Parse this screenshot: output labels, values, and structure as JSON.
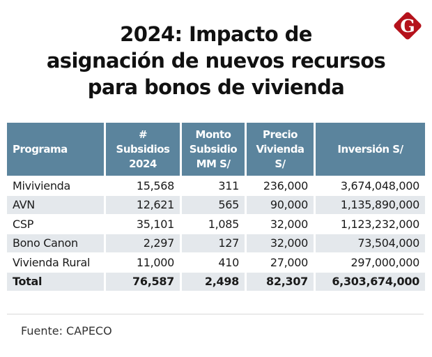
{
  "title_lines": [
    "2024: Impacto de",
    "asignación de nuevos recursos",
    "para bonos de vivienda"
  ],
  "logo": {
    "letter": "G",
    "color": "#b5121b"
  },
  "table": {
    "headers": [
      [
        "Programa"
      ],
      [
        "#",
        "Subsidios",
        "2024"
      ],
      [
        "Monto",
        "Subsidio",
        "MM S/"
      ],
      [
        "Precio",
        "Vivienda",
        "S/"
      ],
      [
        "Inversión S/"
      ]
    ],
    "rows": [
      [
        "Mivivienda",
        "15,568",
        "311",
        "236,000",
        "3,674,048,000"
      ],
      [
        "AVN",
        "12,621",
        "565",
        "90,000",
        "1,135,890,000"
      ],
      [
        "CSP",
        "35,101",
        "1,085",
        "32,000",
        "1,123,232,000"
      ],
      [
        "Bono Canon",
        "2,297",
        "127",
        "32,000",
        "73,504,000"
      ],
      [
        "Vivienda Rural",
        "11,000",
        "410",
        "27,000",
        "297,000,000"
      ]
    ],
    "total": [
      "Total",
      "76,587",
      "2,498",
      "82,307",
      "6,303,674,000"
    ]
  },
  "source": "Fuente: CAPECO",
  "colors": {
    "header": "#5b849d",
    "stripe": "#e4e8ec"
  }
}
